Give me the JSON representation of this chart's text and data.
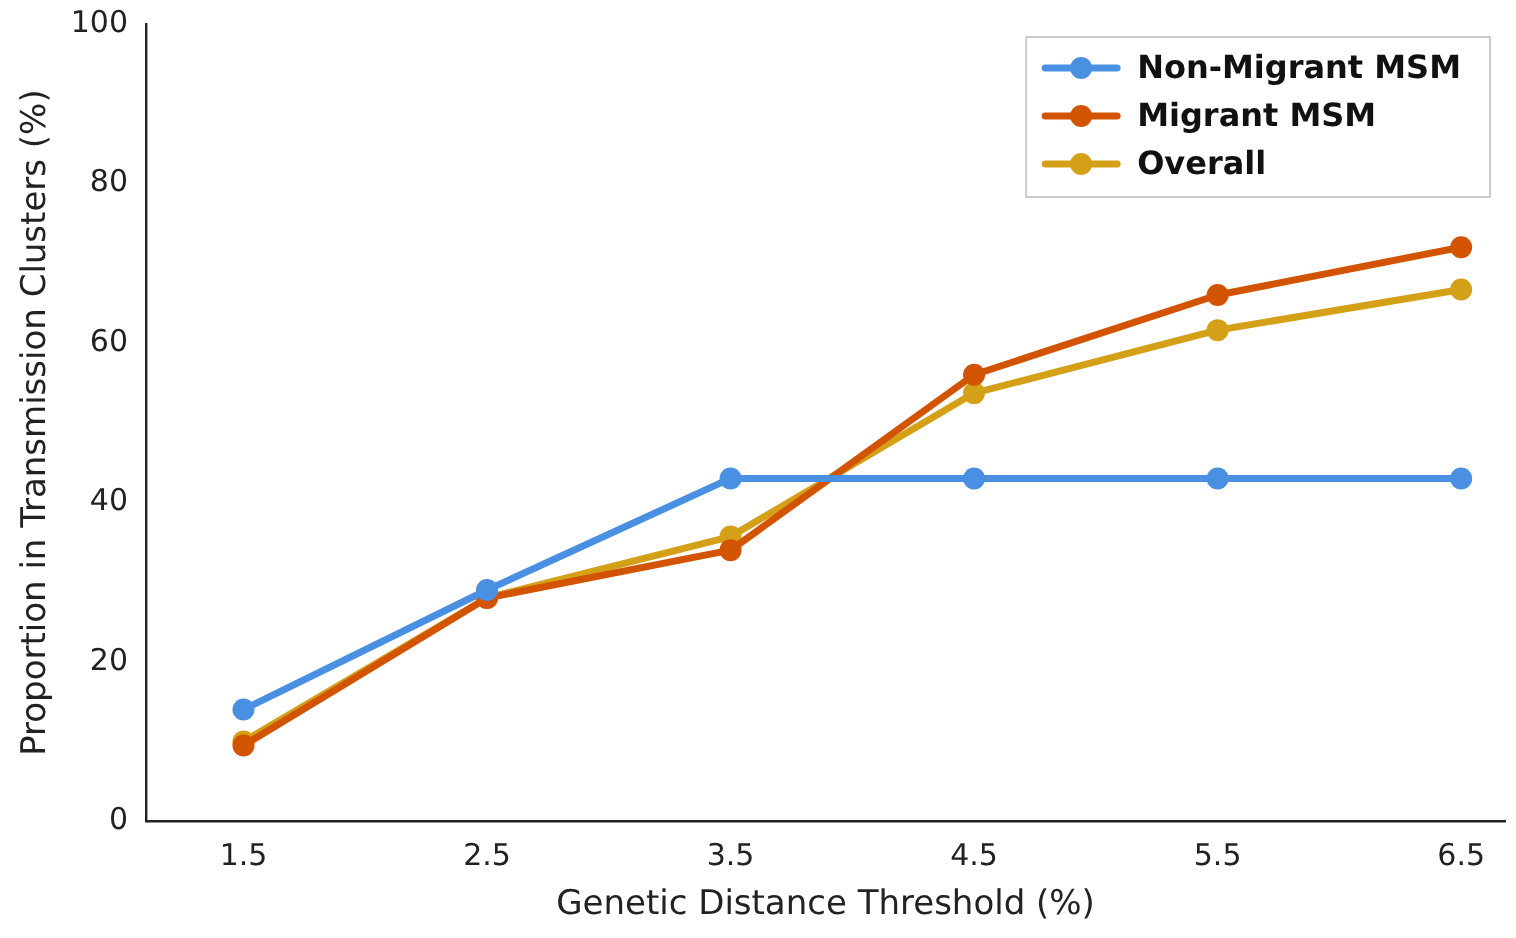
{
  "chart_data": {
    "type": "line",
    "xlabel": "Genetic Distance Threshold (%)",
    "ylabel": "Proportion in Transmission Clusters (%)",
    "x": [
      1.5,
      2.5,
      3.5,
      4.5,
      5.5,
      6.5
    ],
    "series": [
      {
        "name": "Non-Migrant MSM",
        "color": "#4a90e2",
        "values": [
          14,
          29,
          43,
          43,
          43,
          43
        ]
      },
      {
        "name": "Migrant MSM",
        "color": "#d35400",
        "values": [
          9.5,
          28,
          34,
          56,
          66,
          72
        ]
      },
      {
        "name": "Overall",
        "color": "#d4a017",
        "values": [
          10,
          28,
          35.7,
          53.7,
          61.6,
          66.7
        ]
      }
    ],
    "xlim": [
      1.1,
      6.68
    ],
    "xticks": [
      1.5,
      2.5,
      3.5,
      4.5,
      5.5,
      6.5
    ],
    "ylim": [
      0,
      100
    ],
    "yticks": [
      0,
      20,
      40,
      60,
      80,
      100
    ],
    "grid": false,
    "legend": "top right",
    "marker": "circle",
    "line_style": "solid"
  }
}
